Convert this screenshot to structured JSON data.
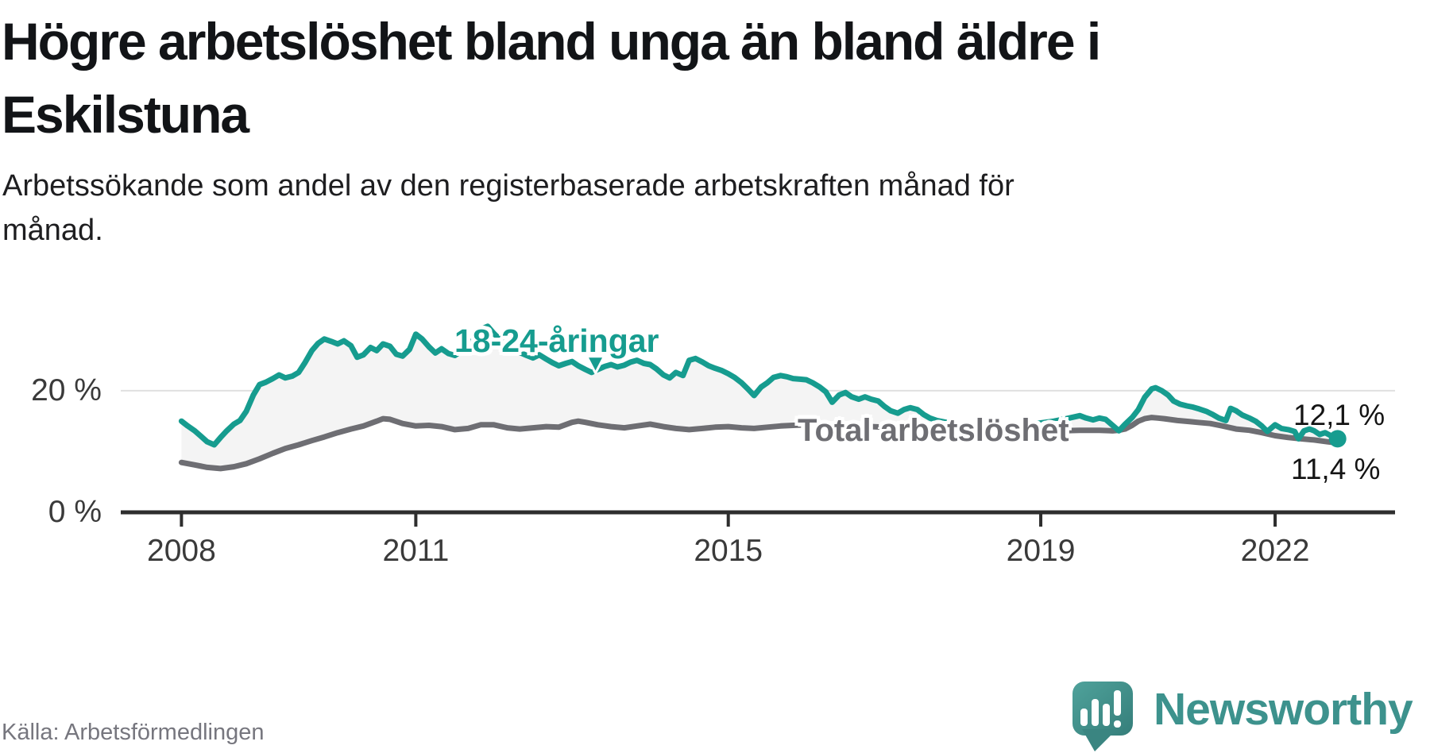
{
  "header": {
    "title_lines": [
      "Högre arbetslöshet bland unga än bland äldre i",
      "Eskilstuna"
    ],
    "subtitle_lines": [
      "Arbetssökande som andel av den registerbaserade arbetskraften månad för",
      "månad."
    ]
  },
  "footer": {
    "source": "Källa: Arbetsförmedlingen",
    "brand": "Newsworthy",
    "brand_icon": "speech-bubble-bar-chart-exclamation"
  },
  "colors": {
    "young_series": "#169c8f",
    "total_series": "#6e6e73",
    "fill_between": "#f4f4f4",
    "gridline": "#e0e0e0",
    "axis": "#2e2e2e",
    "value_label": "#141414",
    "brand_teal": "#3d928d"
  },
  "chart_data": {
    "type": "line",
    "title": "Högre arbetslöshet bland unga än bland äldre i Eskilstuna",
    "subtitle": "Arbetssökande som andel av den registerbaserade arbetskraften månad för månad.",
    "unit": "%",
    "grid": "only-20-percent-line",
    "legend_position": "inline-labels-on-lines",
    "x_axis": {
      "ticks": [
        2008,
        2011,
        2015,
        2019,
        2022
      ],
      "tick_labels": [
        "2008",
        "2011",
        "2015",
        "2019",
        "2022"
      ],
      "range": [
        2008.0,
        2022.8
      ]
    },
    "y_axis": {
      "ticks": [
        {
          "value": 0,
          "label": "0 %"
        },
        {
          "value": 20,
          "label": "20 %"
        }
      ],
      "range": [
        0,
        32
      ]
    },
    "annotation_arrow": {
      "series": "18-24-åringar",
      "t": 2013.3,
      "v_tip": 22.9
    },
    "series": [
      {
        "name": "18-24-åringar",
        "color": "#169c8f",
        "end_label": "12,1 %",
        "end_value": 12.1,
        "points": [
          [
            2008.0,
            15.0
          ],
          [
            2008.08,
            14.2
          ],
          [
            2008.17,
            13.4
          ],
          [
            2008.25,
            12.5
          ],
          [
            2008.33,
            11.6
          ],
          [
            2008.42,
            11.1
          ],
          [
            2008.5,
            12.3
          ],
          [
            2008.58,
            13.4
          ],
          [
            2008.67,
            14.5
          ],
          [
            2008.75,
            15.1
          ],
          [
            2008.83,
            16.6
          ],
          [
            2008.92,
            19.3
          ],
          [
            2009.0,
            21.0
          ],
          [
            2009.08,
            21.4
          ],
          [
            2009.17,
            22.0
          ],
          [
            2009.25,
            22.6
          ],
          [
            2009.33,
            22.1
          ],
          [
            2009.42,
            22.4
          ],
          [
            2009.5,
            23.0
          ],
          [
            2009.58,
            24.6
          ],
          [
            2009.67,
            26.6
          ],
          [
            2009.75,
            27.8
          ],
          [
            2009.83,
            28.5
          ],
          [
            2009.92,
            28.1
          ],
          [
            2010.0,
            27.7
          ],
          [
            2010.08,
            28.2
          ],
          [
            2010.17,
            27.4
          ],
          [
            2010.25,
            25.5
          ],
          [
            2010.33,
            25.9
          ],
          [
            2010.42,
            27.1
          ],
          [
            2010.5,
            26.6
          ],
          [
            2010.58,
            27.7
          ],
          [
            2010.67,
            27.3
          ],
          [
            2010.75,
            26.0
          ],
          [
            2010.83,
            25.7
          ],
          [
            2010.92,
            26.8
          ],
          [
            2011.0,
            29.3
          ],
          [
            2011.08,
            28.5
          ],
          [
            2011.17,
            27.2
          ],
          [
            2011.25,
            26.2
          ],
          [
            2011.33,
            26.9
          ],
          [
            2011.42,
            26.1
          ],
          [
            2011.5,
            25.8
          ],
          [
            2011.58,
            26.5
          ],
          [
            2011.67,
            27.4
          ],
          [
            2011.75,
            28.6
          ],
          [
            2011.83,
            30.1
          ],
          [
            2011.92,
            30.6
          ],
          [
            2012.0,
            29.4
          ],
          [
            2012.08,
            28.4
          ],
          [
            2012.17,
            27.5
          ],
          [
            2012.25,
            26.9
          ],
          [
            2012.33,
            26.3
          ],
          [
            2012.42,
            25.8
          ],
          [
            2012.5,
            25.4
          ],
          [
            2012.58,
            25.9
          ],
          [
            2012.67,
            25.2
          ],
          [
            2012.75,
            24.6
          ],
          [
            2012.83,
            24.1
          ],
          [
            2012.92,
            24.5
          ],
          [
            2013.0,
            24.8
          ],
          [
            2013.08,
            24.1
          ],
          [
            2013.17,
            23.5
          ],
          [
            2013.25,
            23.0
          ],
          [
            2013.33,
            23.5
          ],
          [
            2013.42,
            24.0
          ],
          [
            2013.5,
            24.3
          ],
          [
            2013.58,
            23.9
          ],
          [
            2013.67,
            24.2
          ],
          [
            2013.75,
            24.7
          ],
          [
            2013.83,
            25.0
          ],
          [
            2013.92,
            24.5
          ],
          [
            2014.0,
            24.3
          ],
          [
            2014.08,
            23.6
          ],
          [
            2014.17,
            22.6
          ],
          [
            2014.25,
            22.1
          ],
          [
            2014.33,
            23.0
          ],
          [
            2014.42,
            22.5
          ],
          [
            2014.5,
            25.0
          ],
          [
            2014.58,
            25.3
          ],
          [
            2014.67,
            24.7
          ],
          [
            2014.75,
            24.1
          ],
          [
            2014.83,
            23.7
          ],
          [
            2014.92,
            23.3
          ],
          [
            2015.0,
            22.8
          ],
          [
            2015.08,
            22.2
          ],
          [
            2015.17,
            21.3
          ],
          [
            2015.25,
            20.3
          ],
          [
            2015.33,
            19.2
          ],
          [
            2015.42,
            20.6
          ],
          [
            2015.5,
            21.3
          ],
          [
            2015.58,
            22.2
          ],
          [
            2015.67,
            22.5
          ],
          [
            2015.75,
            22.3
          ],
          [
            2015.83,
            22.0
          ],
          [
            2015.92,
            21.9
          ],
          [
            2016.0,
            21.8
          ],
          [
            2016.08,
            21.3
          ],
          [
            2016.17,
            20.6
          ],
          [
            2016.25,
            19.8
          ],
          [
            2016.33,
            18.1
          ],
          [
            2016.42,
            19.3
          ],
          [
            2016.5,
            19.7
          ],
          [
            2016.58,
            19.0
          ],
          [
            2016.67,
            18.6
          ],
          [
            2016.75,
            19.0
          ],
          [
            2016.83,
            18.6
          ],
          [
            2016.92,
            18.3
          ],
          [
            2017.0,
            17.4
          ],
          [
            2017.08,
            16.7
          ],
          [
            2017.17,
            16.3
          ],
          [
            2017.25,
            16.9
          ],
          [
            2017.33,
            17.2
          ],
          [
            2017.42,
            16.9
          ],
          [
            2017.5,
            16.1
          ],
          [
            2017.58,
            15.5
          ],
          [
            2017.67,
            15.1
          ],
          [
            2017.75,
            14.9
          ],
          [
            2017.83,
            14.7
          ],
          [
            2017.92,
            14.5
          ],
          [
            2018.0,
            14.3
          ],
          [
            2018.17,
            14.0
          ],
          [
            2018.33,
            13.9
          ],
          [
            2018.5,
            14.0
          ],
          [
            2018.67,
            14.2
          ],
          [
            2018.83,
            14.4
          ],
          [
            2019.0,
            14.7
          ],
          [
            2019.17,
            15.0
          ],
          [
            2019.33,
            15.4
          ],
          [
            2019.5,
            15.9
          ],
          [
            2019.58,
            15.5
          ],
          [
            2019.67,
            15.2
          ],
          [
            2019.75,
            15.5
          ],
          [
            2019.83,
            15.3
          ],
          [
            2019.92,
            14.3
          ],
          [
            2020.0,
            13.4
          ],
          [
            2020.08,
            14.5
          ],
          [
            2020.17,
            15.6
          ],
          [
            2020.25,
            16.9
          ],
          [
            2020.33,
            18.9
          ],
          [
            2020.42,
            20.3
          ],
          [
            2020.47,
            20.5
          ],
          [
            2020.55,
            20.0
          ],
          [
            2020.63,
            19.3
          ],
          [
            2020.7,
            18.3
          ],
          [
            2020.78,
            17.8
          ],
          [
            2020.87,
            17.5
          ],
          [
            2020.95,
            17.3
          ],
          [
            2021.03,
            17.0
          ],
          [
            2021.12,
            16.6
          ],
          [
            2021.2,
            16.1
          ],
          [
            2021.28,
            15.5
          ],
          [
            2021.37,
            15.1
          ],
          [
            2021.43,
            17.1
          ],
          [
            2021.5,
            16.7
          ],
          [
            2021.58,
            16.0
          ],
          [
            2021.67,
            15.5
          ],
          [
            2021.75,
            15.0
          ],
          [
            2021.83,
            14.2
          ],
          [
            2021.9,
            13.3
          ],
          [
            2022.0,
            14.4
          ],
          [
            2022.08,
            13.8
          ],
          [
            2022.17,
            13.6
          ],
          [
            2022.25,
            13.3
          ],
          [
            2022.3,
            12.1
          ],
          [
            2022.37,
            13.4
          ],
          [
            2022.44,
            13.7
          ],
          [
            2022.5,
            13.4
          ],
          [
            2022.57,
            12.8
          ],
          [
            2022.64,
            13.1
          ],
          [
            2022.7,
            12.7
          ],
          [
            2022.8,
            12.1
          ]
        ]
      },
      {
        "name": "Total arbetslöshet",
        "color": "#6e6e73",
        "end_label": "11,4 %",
        "end_value": 11.4,
        "points": [
          [
            2008.0,
            8.2
          ],
          [
            2008.17,
            7.8
          ],
          [
            2008.33,
            7.4
          ],
          [
            2008.5,
            7.2
          ],
          [
            2008.67,
            7.5
          ],
          [
            2008.83,
            8.0
          ],
          [
            2009.0,
            8.8
          ],
          [
            2009.17,
            9.7
          ],
          [
            2009.33,
            10.5
          ],
          [
            2009.5,
            11.1
          ],
          [
            2009.67,
            11.8
          ],
          [
            2009.83,
            12.4
          ],
          [
            2010.0,
            13.1
          ],
          [
            2010.17,
            13.7
          ],
          [
            2010.33,
            14.2
          ],
          [
            2010.5,
            15.0
          ],
          [
            2010.58,
            15.4
          ],
          [
            2010.67,
            15.3
          ],
          [
            2010.83,
            14.6
          ],
          [
            2011.0,
            14.2
          ],
          [
            2011.17,
            14.3
          ],
          [
            2011.33,
            14.1
          ],
          [
            2011.5,
            13.6
          ],
          [
            2011.67,
            13.8
          ],
          [
            2011.83,
            14.4
          ],
          [
            2012.0,
            14.4
          ],
          [
            2012.17,
            13.9
          ],
          [
            2012.33,
            13.7
          ],
          [
            2012.5,
            13.9
          ],
          [
            2012.67,
            14.1
          ],
          [
            2012.83,
            14.0
          ],
          [
            2013.0,
            14.8
          ],
          [
            2013.08,
            15.0
          ],
          [
            2013.17,
            14.8
          ],
          [
            2013.33,
            14.4
          ],
          [
            2013.5,
            14.1
          ],
          [
            2013.67,
            13.9
          ],
          [
            2013.83,
            14.2
          ],
          [
            2014.0,
            14.5
          ],
          [
            2014.17,
            14.1
          ],
          [
            2014.33,
            13.8
          ],
          [
            2014.5,
            13.6
          ],
          [
            2014.67,
            13.8
          ],
          [
            2014.83,
            14.0
          ],
          [
            2015.0,
            14.1
          ],
          [
            2015.17,
            13.9
          ],
          [
            2015.33,
            13.8
          ],
          [
            2015.5,
            14.0
          ],
          [
            2015.67,
            14.2
          ],
          [
            2015.83,
            14.3
          ],
          [
            2016.0,
            14.4
          ],
          [
            2016.17,
            14.2
          ],
          [
            2016.33,
            14.0
          ],
          [
            2016.5,
            14.1
          ],
          [
            2016.67,
            14.2
          ],
          [
            2016.83,
            14.1
          ],
          [
            2017.0,
            14.0
          ],
          [
            2017.17,
            13.9
          ],
          [
            2017.33,
            13.8
          ],
          [
            2017.5,
            13.7
          ],
          [
            2017.67,
            13.6
          ],
          [
            2017.83,
            13.5
          ],
          [
            2018.0,
            13.5
          ],
          [
            2018.25,
            13.4
          ],
          [
            2018.5,
            13.3
          ],
          [
            2018.75,
            13.3
          ],
          [
            2019.0,
            13.3
          ],
          [
            2019.25,
            13.4
          ],
          [
            2019.5,
            13.5
          ],
          [
            2019.75,
            13.5
          ],
          [
            2019.92,
            13.4
          ],
          [
            2020.0,
            13.5
          ],
          [
            2020.08,
            13.7
          ],
          [
            2020.17,
            14.3
          ],
          [
            2020.25,
            15.0
          ],
          [
            2020.33,
            15.4
          ],
          [
            2020.42,
            15.6
          ],
          [
            2020.5,
            15.5
          ],
          [
            2020.58,
            15.4
          ],
          [
            2020.75,
            15.1
          ],
          [
            2020.92,
            14.9
          ],
          [
            2021.0,
            14.8
          ],
          [
            2021.17,
            14.6
          ],
          [
            2021.33,
            14.2
          ],
          [
            2021.5,
            13.7
          ],
          [
            2021.67,
            13.5
          ],
          [
            2021.83,
            13.1
          ],
          [
            2022.0,
            12.6
          ],
          [
            2022.17,
            12.3
          ],
          [
            2022.33,
            12.1
          ],
          [
            2022.5,
            11.9
          ],
          [
            2022.67,
            11.6
          ],
          [
            2022.8,
            11.4
          ]
        ]
      }
    ]
  }
}
